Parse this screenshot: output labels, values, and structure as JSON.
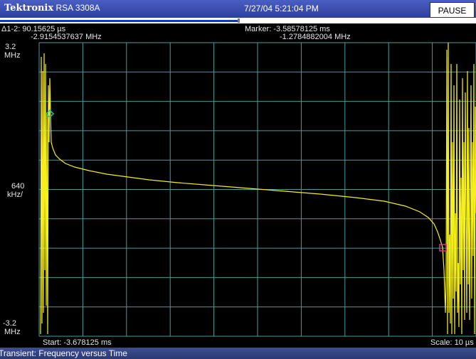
{
  "header": {
    "brand": "Tektronix",
    "model": "RSA 3308A",
    "datetime": "7/27/04 5:21:04 PM",
    "pause_label": "PAUSE",
    "progress_fraction": 0.5
  },
  "readouts": {
    "delta_line1": "Δ1-2: 90.15625 µs",
    "delta_line2": "-2.9154537637 MHz",
    "marker_line1": "Marker: -3.58578125 ms",
    "marker_line2": "-1.2784882004 MHz",
    "y_top": "3.2",
    "y_top_unit": "MHz",
    "y_div": "640",
    "y_div_unit": "kHz/",
    "y_bottom": "-3.2",
    "y_bottom_unit": "MHz",
    "start": "Start: -3.678125 ms",
    "scale": "Scale: 10 µs"
  },
  "status": {
    "mode": "Transient: Frequency versus Time"
  },
  "colors": {
    "trace": "#f5ef1e",
    "grid": "#4e9a9a",
    "marker1": "#19c9a0",
    "marker2": "#d23a8a"
  }
}
